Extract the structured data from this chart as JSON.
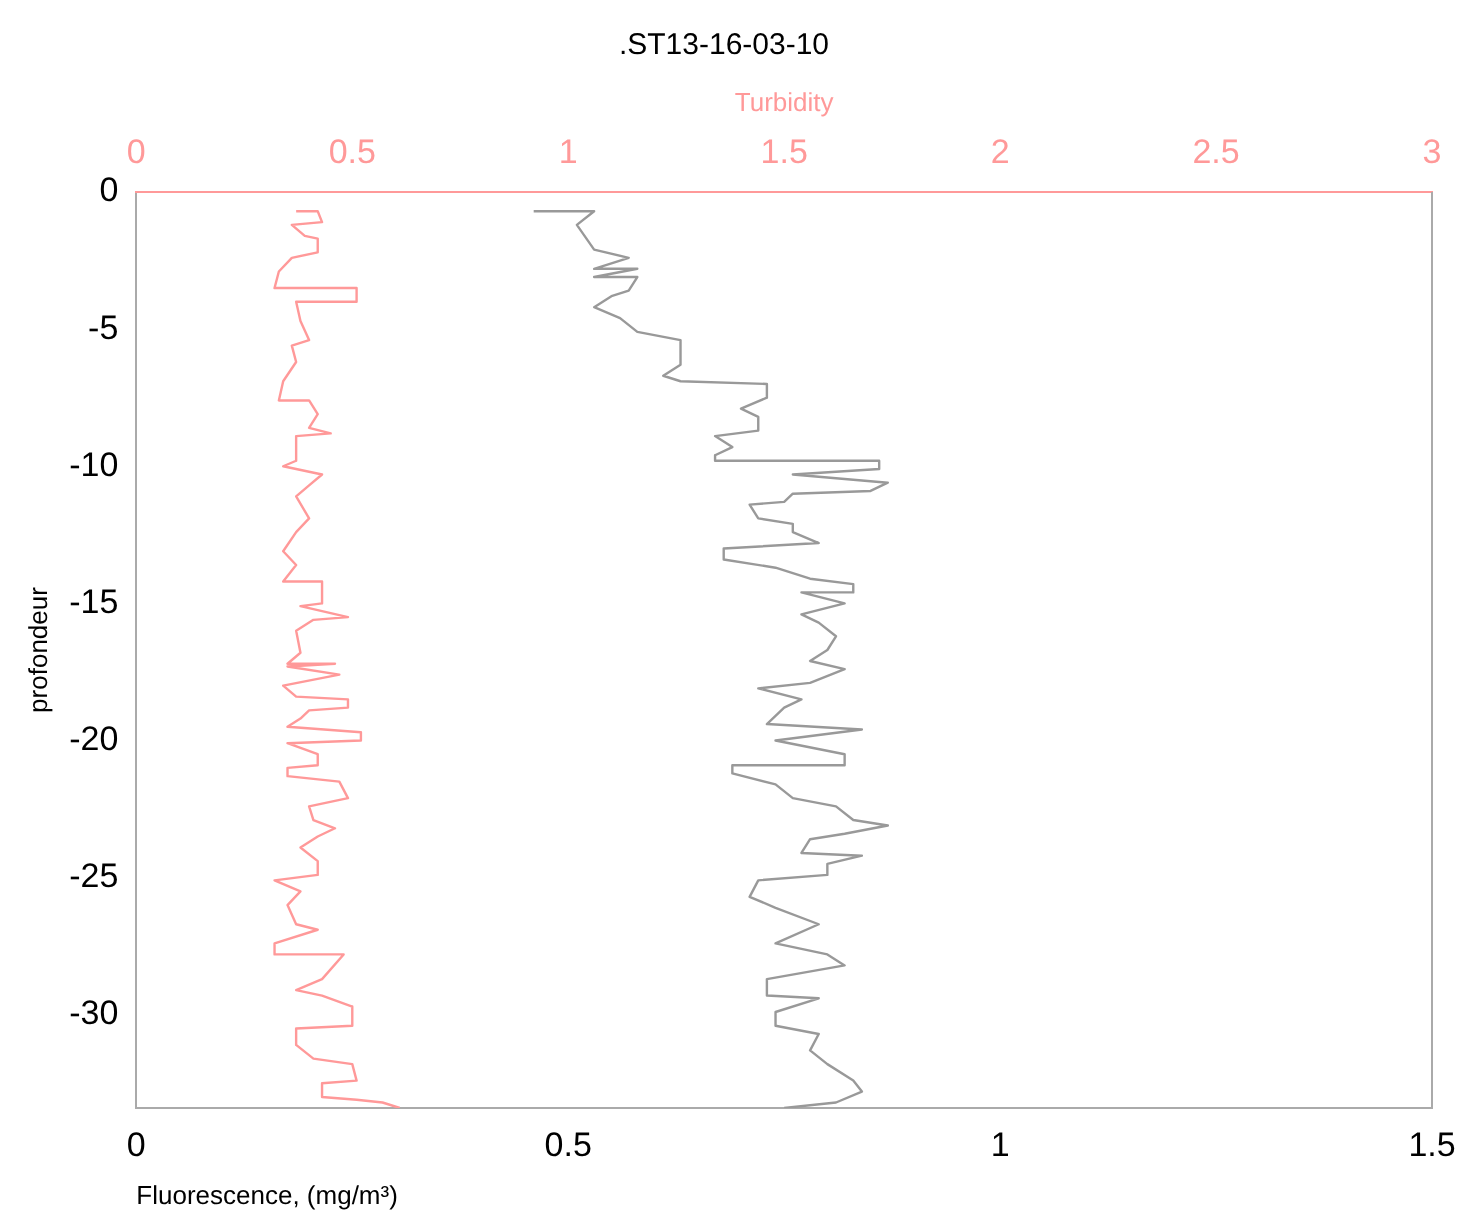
{
  "chart_data": {
    "type": "line",
    "title": ".ST13-16-03-10",
    "xlabel": "Fluorescence, (mg/m³)",
    "ylabel": "profondeur",
    "x2label": "Turbidity",
    "xlim": [
      0,
      1.5
    ],
    "xticks": [
      0,
      0.5,
      1,
      1.5
    ],
    "x2lim": [
      0,
      3
    ],
    "x2ticks": [
      0,
      0.5,
      1,
      1.5,
      2,
      2.5,
      3
    ],
    "ylim": [
      -33.4,
      0
    ],
    "yticks": [
      0,
      -5,
      -10,
      -15,
      -20,
      -25,
      -30
    ],
    "grid": false,
    "legend": false,
    "marker": "none",
    "line_style": "solid",
    "series": [
      {
        "color": "#ff9999",
        "axis": "x2",
        "x": [
          0.37,
          0.42,
          0.43,
          0.36,
          0.39,
          0.42,
          0.42,
          0.36,
          0.33,
          0.32,
          0.51,
          0.51,
          0.37,
          0.38,
          0.4,
          0.36,
          0.37,
          0.34,
          0.33,
          0.4,
          0.42,
          0.4,
          0.45,
          0.37,
          0.37,
          0.34,
          0.43,
          0.4,
          0.37,
          0.4,
          0.37,
          0.34,
          0.37,
          0.34,
          0.43,
          0.43,
          0.38,
          0.49,
          0.41,
          0.37,
          0.38,
          0.35,
          0.46,
          0.35,
          0.47,
          0.34,
          0.37,
          0.49,
          0.49,
          0.4,
          0.38,
          0.35,
          0.52,
          0.52,
          0.35,
          0.42,
          0.42,
          0.35,
          0.35,
          0.47,
          0.49,
          0.4,
          0.41,
          0.46,
          0.42,
          0.38,
          0.42,
          0.42,
          0.32,
          0.38,
          0.35,
          0.37,
          0.42,
          0.32,
          0.32,
          0.48,
          0.43,
          0.37,
          0.43,
          0.5,
          0.5,
          0.37,
          0.37,
          0.41,
          0.5,
          0.51,
          0.43,
          0.43,
          0.51,
          0.57,
          0.61
        ],
        "values": [
          -0.7,
          -0.7,
          -1.1,
          -1.2,
          -1.6,
          -1.7,
          -2.2,
          -2.4,
          -2.9,
          -3.5,
          -3.5,
          -4.0,
          -4.0,
          -4.7,
          -5.4,
          -5.6,
          -6.2,
          -6.9,
          -7.6,
          -7.6,
          -8.1,
          -8.6,
          -8.8,
          -8.9,
          -9.8,
          -10.0,
          -10.3,
          -10.7,
          -11.1,
          -11.9,
          -12.4,
          -13.1,
          -13.6,
          -14.2,
          -14.2,
          -15.0,
          -15.1,
          -15.5,
          -15.6,
          -16.0,
          -16.8,
          -17.2,
          -17.2,
          -17.3,
          -17.6,
          -18.0,
          -18.4,
          -18.5,
          -18.8,
          -18.9,
          -19.2,
          -19.5,
          -19.7,
          -20.0,
          -20.1,
          -20.5,
          -20.9,
          -21.0,
          -21.3,
          -21.5,
          -22.1,
          -22.4,
          -22.9,
          -23.2,
          -23.5,
          -23.9,
          -24.4,
          -24.9,
          -25.1,
          -25.5,
          -26.0,
          -26.7,
          -26.9,
          -27.4,
          -27.8,
          -27.8,
          -28.7,
          -29.1,
          -29.3,
          -29.7,
          -30.4,
          -30.5,
          -31.1,
          -31.6,
          -31.8,
          -32.4,
          -32.5,
          -33.0,
          -33.1,
          -33.2,
          -33.4
        ]
      },
      {
        "color": "#999999",
        "x": [
          0.46,
          0.53,
          0.51,
          0.53,
          0.57,
          0.53,
          0.58,
          0.53,
          0.58,
          0.57,
          0.55,
          0.53,
          0.56,
          0.58,
          0.63,
          0.63,
          0.61,
          0.63,
          0.73,
          0.73,
          0.7,
          0.72,
          0.72,
          0.67,
          0.69,
          0.67,
          0.67,
          0.86,
          0.86,
          0.76,
          0.87,
          0.85,
          0.76,
          0.75,
          0.71,
          0.72,
          0.76,
          0.76,
          0.79,
          0.68,
          0.68,
          0.74,
          0.78,
          0.83,
          0.83,
          0.77,
          0.82,
          0.77,
          0.79,
          0.81,
          0.8,
          0.78,
          0.82,
          0.78,
          0.72,
          0.77,
          0.75,
          0.73,
          0.84,
          0.74,
          0.82,
          0.82,
          0.69,
          0.69,
          0.74,
          0.76,
          0.81,
          0.83,
          0.87,
          0.82,
          0.78,
          0.77,
          0.84,
          0.8,
          0.8,
          0.72,
          0.71,
          0.74,
          0.79,
          0.74,
          0.8,
          0.82,
          0.73,
          0.73,
          0.79,
          0.74,
          0.74,
          0.79,
          0.78,
          0.8,
          0.83,
          0.84,
          0.81,
          0.75
        ],
        "values": [
          -0.7,
          -0.7,
          -1.2,
          -2.1,
          -2.4,
          -2.8,
          -2.8,
          -3.1,
          -3.1,
          -3.6,
          -3.8,
          -4.2,
          -4.6,
          -5.1,
          -5.4,
          -6.3,
          -6.7,
          -6.9,
          -7.0,
          -7.5,
          -7.9,
          -8.2,
          -8.7,
          -8.9,
          -9.3,
          -9.6,
          -9.8,
          -9.8,
          -10.1,
          -10.3,
          -10.6,
          -10.9,
          -11.0,
          -11.3,
          -11.4,
          -11.9,
          -12.1,
          -12.4,
          -12.8,
          -13.0,
          -13.4,
          -13.7,
          -14.1,
          -14.3,
          -14.6,
          -14.6,
          -15.0,
          -15.4,
          -15.7,
          -16.2,
          -16.7,
          -17.1,
          -17.4,
          -17.9,
          -18.1,
          -18.5,
          -18.8,
          -19.4,
          -19.6,
          -20.0,
          -20.5,
          -20.9,
          -20.9,
          -21.2,
          -21.6,
          -22.1,
          -22.4,
          -22.9,
          -23.1,
          -23.4,
          -23.6,
          -24.1,
          -24.2,
          -24.5,
          -24.9,
          -25.1,
          -25.7,
          -26.1,
          -26.7,
          -27.4,
          -27.8,
          -28.2,
          -28.7,
          -29.3,
          -29.4,
          -29.9,
          -30.4,
          -30.7,
          -31.3,
          -31.8,
          -32.4,
          -32.8,
          -33.2,
          -33.4
        ]
      }
    ]
  }
}
